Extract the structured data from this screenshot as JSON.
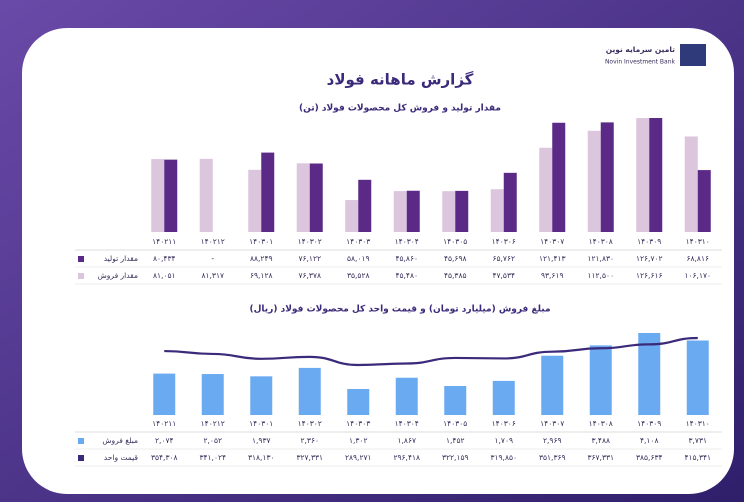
{
  "logo": {
    "name": "تامین سرمایه نوین",
    "english": "Novin Investment Bank"
  },
  "title": "گزارش ماهانه فولاد",
  "chart_data": [
    {
      "type": "bar",
      "title": "مقدار تولید و فروش کل محصولات فولاد (تن)",
      "categories": [
        "۱۴۰۲۱۱",
        "۱۴۰۲۱۲",
        "۱۴۰۳۰۱",
        "۱۴۰۳۰۲",
        "۱۴۰۳۰۳",
        "۱۴۰۳۰۴",
        "۱۴۰۳۰۵",
        "۱۴۰۳۰۶",
        "۱۴۰۳۰۷",
        "۱۴۰۳۰۸",
        "۱۴۰۳۰۹",
        "۱۴۰۳۱۰"
      ],
      "series": [
        {
          "name": "مقدار تولید",
          "color": "#5b2a86",
          "values": [
            80434,
            null,
            88249,
            76122,
            58019,
            45860,
            45698,
            65762,
            121413,
            121830,
            126702,
            68816
          ],
          "value_labels": [
            "۸۰,۴۳۴",
            "-",
            "۸۸,۲۴۹",
            "۷۶,۱۲۲",
            "۵۸,۰۱۹",
            "۴۵,۸۶۰",
            "۴۵,۶۹۸",
            "۶۵,۷۶۲",
            "۱۲۱,۴۱۳",
            "۱۲۱,۸۳۰",
            "۱۲۶,۷۰۲",
            "۶۸,۸۱۶"
          ]
        },
        {
          "name": "مقدار فروش",
          "color": "#dcc6de",
          "values": [
            81051,
            81317,
            69128,
            76378,
            35528,
            45480,
            45385,
            47534,
            93619,
            112500,
            126616,
            106170
          ],
          "value_labels": [
            "۸۱,۰۵۱",
            "۸۱,۳۱۷",
            "۶۹,۱۲۸",
            "۷۶,۳۷۸",
            "۳۵,۵۲۸",
            "۴۵,۴۸۰",
            "۴۵,۳۸۵",
            "۴۷,۵۳۴",
            "۹۳,۶۱۹",
            "۱۱۲,۵۰۰",
            "۱۲۶,۶۱۶",
            "۱۰۶,۱۷۰"
          ]
        }
      ]
    },
    {
      "type": "combo",
      "title": "مبلغ فروش (میلیارد تومان) و قیمت واحد کل محصولات فولاد (ریال)",
      "categories": [
        "۱۴۰۲۱۱",
        "۱۴۰۲۱۲",
        "۱۴۰۳۰۱",
        "۱۴۰۳۰۲",
        "۱۴۰۳۰۳",
        "۱۴۰۳۰۴",
        "۱۴۰۳۰۵",
        "۱۴۰۳۰۶",
        "۱۴۰۳۰۷",
        "۱۴۰۳۰۸",
        "۱۴۰۳۰۹",
        "۱۴۰۳۱۰"
      ],
      "series": [
        {
          "name": "مبلغ فروش",
          "type": "bar",
          "color": "#6aaaf0",
          "values": [
            2074,
            2052,
            1937,
            2360,
            1302,
            1867,
            1452,
            1709,
            2969,
            3488,
            4108,
            3731
          ],
          "value_labels": [
            "۲,۰۷۴",
            "۲,۰۵۲",
            "۱,۹۳۷",
            "۲,۳۶۰",
            "۱,۳۰۲",
            "۱,۸۶۷",
            "۱,۴۵۲",
            "۱,۷۰۹",
            "۲,۹۶۹",
            "۳,۴۸۸",
            "۴,۱۰۸",
            "۳,۷۳۱"
          ]
        },
        {
          "name": "قیمت واحد",
          "type": "line",
          "color": "#3b2a7a",
          "values": [
            354308,
            341024,
            318130,
            327331,
            289271,
            296418,
            322159,
            319850,
            351369,
            367331,
            385634,
            415341
          ],
          "value_labels": [
            "۳۵۴,۳۰۸",
            "۳۴۱,۰۲۴",
            "۳۱۸,۱۳۰",
            "۳۲۷,۳۳۱",
            "۲۸۹,۲۷۱",
            "۲۹۶,۴۱۸",
            "۳۲۲,۱۵۹",
            "۳۱۹,۸۵۰",
            "۳۵۱,۳۶۹",
            "۳۶۷,۳۳۱",
            "۳۸۵,۶۳۴",
            "۴۱۵,۳۴۱"
          ]
        }
      ]
    }
  ]
}
